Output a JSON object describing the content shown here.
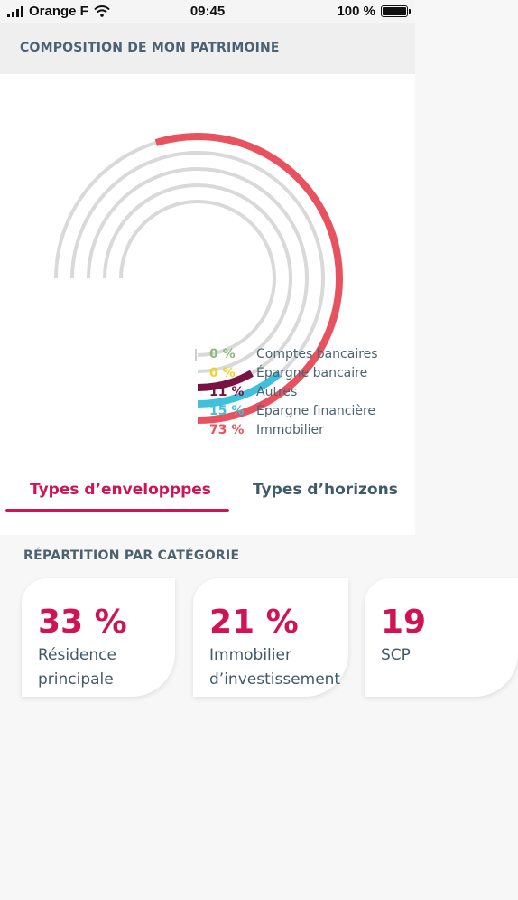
{
  "status_bar": {
    "carrier": "Orange F",
    "time": "09:45",
    "battery": "100 %"
  },
  "header": {
    "title": "COMPOSITION DE MON PATRIMOINE"
  },
  "chart_data": {
    "type": "pie",
    "title": "",
    "categories": [
      "Comptes bancaires",
      "Épargne bancaire",
      "Autres",
      "Épargne financière",
      "Immobilier"
    ],
    "values": [
      0,
      0,
      11,
      15,
      73
    ],
    "labels": [
      "0 %",
      "0 %",
      "11 %",
      "15 %",
      "73 %"
    ],
    "colors": [
      "#8ab97a",
      "#f2d21e",
      "#7a1143",
      "#3fc0dc",
      "#e8525e"
    ],
    "track_color": "#d9d9d9"
  },
  "tabs": [
    {
      "label": "Types d’envelopppes",
      "active": true
    },
    {
      "label": "Types d’horizons",
      "active": false
    }
  ],
  "categories_section": {
    "title": "RÉPARTITION PAR CATÉGORIE",
    "cards": [
      {
        "percent": "33 %",
        "label": "Résidence principale"
      },
      {
        "percent": "21 %",
        "label": "Immobilier d’investissement"
      },
      {
        "percent": "19",
        "label": "SCP"
      }
    ]
  }
}
